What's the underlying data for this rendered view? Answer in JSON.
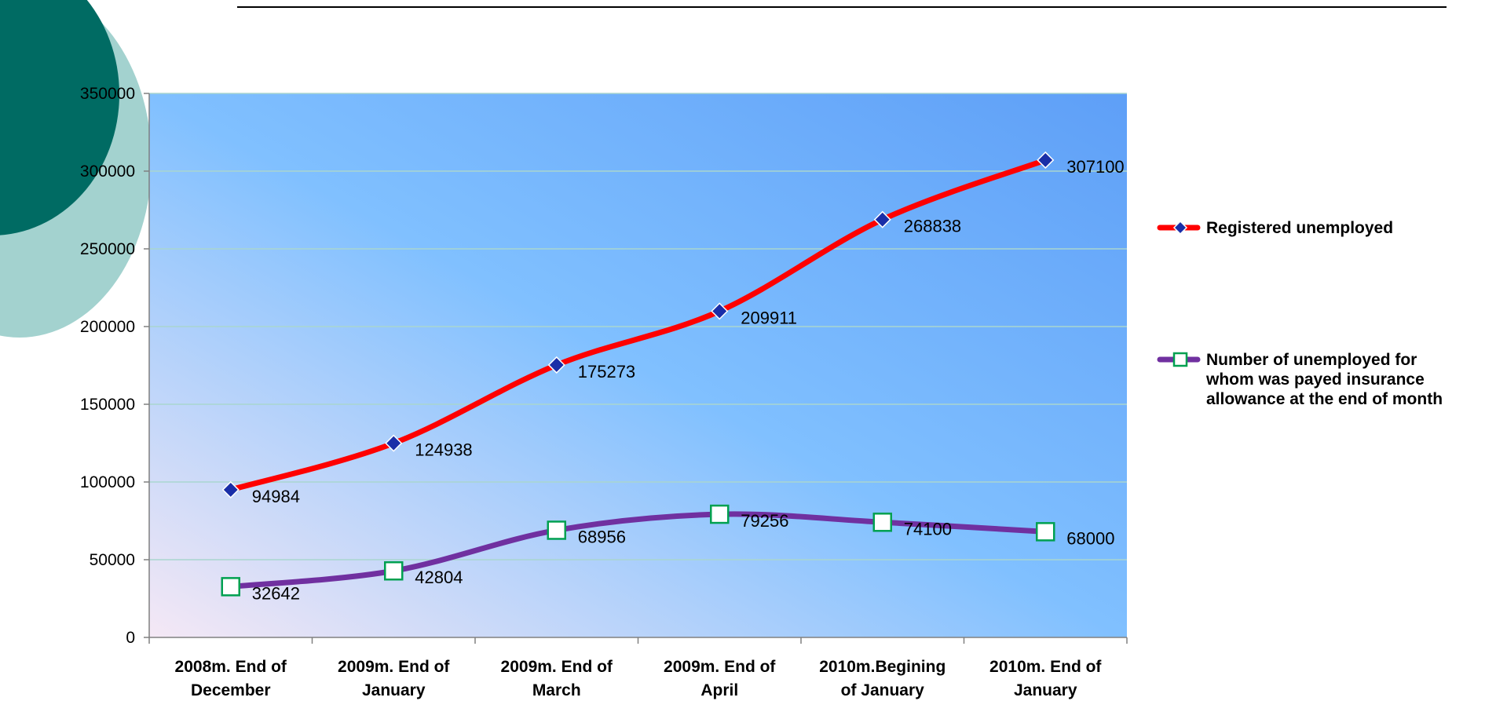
{
  "chart_data": {
    "type": "line",
    "title": "",
    "xlabel": "",
    "ylabel": "",
    "ylim": [
      0,
      350000
    ],
    "yticks": [
      "0",
      "50000",
      "100000",
      "150000",
      "200000",
      "250000",
      "300000",
      "350000"
    ],
    "ytick_values": [
      0,
      50000,
      100000,
      150000,
      200000,
      250000,
      300000,
      350000
    ],
    "grid": true,
    "legend_position": "right",
    "categories": [
      [
        "2008m. End of",
        "December"
      ],
      [
        "2009m. End of",
        "January"
      ],
      [
        "2009m. End of",
        "March"
      ],
      [
        "2009m. End of",
        "April"
      ],
      [
        "2010m.Begining",
        "of January"
      ],
      [
        "2010m. End of",
        "January"
      ]
    ],
    "series": [
      {
        "name": [
          "Registered unemployed"
        ],
        "values": [
          94984,
          124938,
          175273,
          209911,
          268838,
          307100
        ],
        "labels": [
          "94984",
          "124938",
          "175273",
          "209911",
          "268838",
          "307100"
        ],
        "color": "#ff0000",
        "marker": "diamond",
        "marker_color": "#1a2ea8"
      },
      {
        "name": [
          "Number of unemployed for",
          "whom was payed insurance",
          "allowance at the end of month"
        ],
        "values": [
          32642,
          42804,
          68956,
          79256,
          74100,
          68000
        ],
        "labels": [
          "32642",
          "42804",
          "68956",
          "79256",
          "74100",
          "68000"
        ],
        "color": "#7030a0",
        "marker": "square",
        "marker_color": "#00a050"
      }
    ]
  },
  "theme": {
    "circle_dark": "#006b63",
    "circle_light": "#a3d2cf",
    "plot_gradient_start": "#f5e8f5",
    "plot_gradient_mid": "#80c0ff",
    "plot_gradient_end": "#5e9ff7",
    "gridline": "#a9d6cf"
  }
}
